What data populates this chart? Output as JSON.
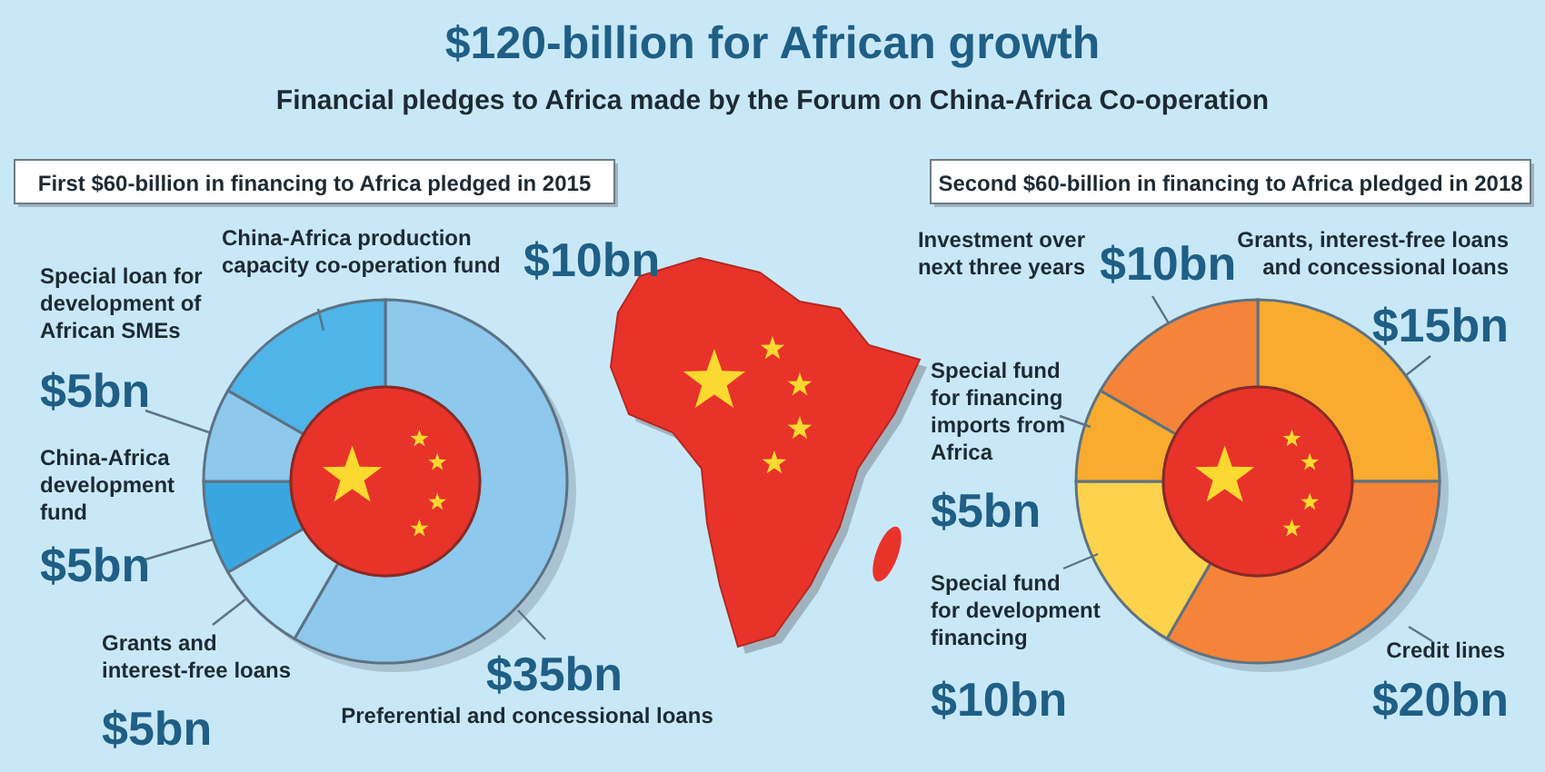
{
  "chart_data": [
    {
      "type": "other",
      "title": "$120-billion for African growth",
      "subtitle": "Financial pledges to Africa made by the Forum on China-Africa Co-operation"
    },
    {
      "type": "donut",
      "title": "First $60-billion in financing to Africa pledged in 2015",
      "categories": [
        "Preferential and concessional loans",
        "Grants and interest-free loans",
        "China-Africa development fund",
        "Special loan for development of African SMEs",
        "China-Africa production capacity co-operation fund"
      ],
      "values": [
        35,
        5,
        5,
        5,
        10
      ],
      "value_labels": [
        "$35bn",
        "$5bn",
        "$5bn",
        "$5bn",
        "$10bn"
      ],
      "colors": [
        "#8ec8ec",
        "#b5e2f6",
        "#3aa6e0",
        "#8ec8ec",
        "#4fb4e8"
      ]
    },
    {
      "type": "donut",
      "title": "Second $60-billion in financing to Africa pledged in 2018",
      "categories": [
        "Grants, interest-free loans and concessional loans",
        "Credit lines",
        "Special fund for development financing",
        "Special fund for financing imports from Africa",
        "Investment over next three years"
      ],
      "values": [
        15,
        20,
        10,
        5,
        10
      ],
      "value_labels": [
        "$15bn",
        "$20bn",
        "$10bn",
        "$5bn",
        "$10bn"
      ],
      "colors": [
        "#f9ab30",
        "#f5843a",
        "#fdd24c",
        "#f9ab30",
        "#f5843a"
      ]
    }
  ]
}
